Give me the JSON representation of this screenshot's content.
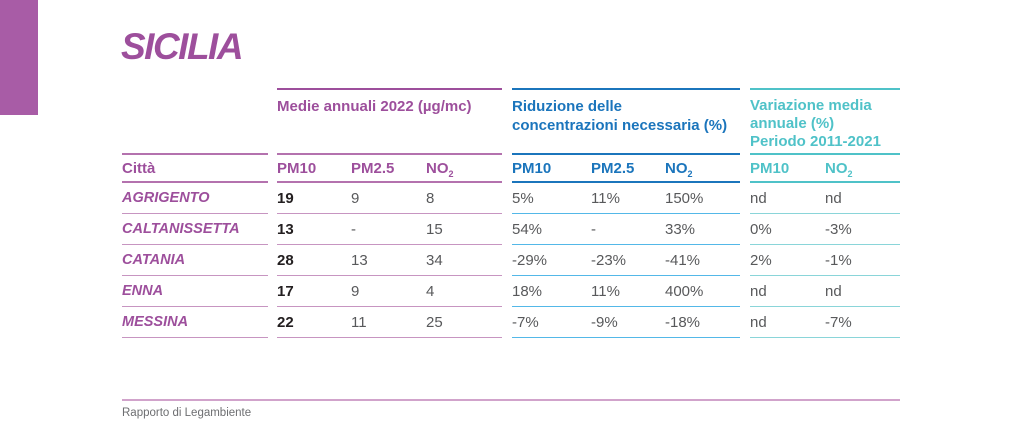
{
  "page": {
    "title": "SICILIA",
    "footer": "Rapporto di Legambiente"
  },
  "colors": {
    "magenta": "#9d4f9c",
    "magenta_block": "#a85ca6",
    "plum_line": "#b472ae",
    "plum_line_light": "#c795c1",
    "blue": "#1b75bc",
    "blue_line_light": "#54b8e8",
    "teal": "#4fc2c8",
    "teal_line_light": "#8ad5d9",
    "text_dark": "#231f20",
    "text_gray": "#58595b",
    "footer_gray": "#6d6e71",
    "footer_line": "#d1a3cb"
  },
  "table": {
    "city_header": "Città",
    "groups": [
      {
        "id": "medie",
        "title_lines": [
          "Medie annuali 2022 (µg/mc)",
          "",
          ""
        ],
        "columns": [
          {
            "label": "PM10",
            "sub": ""
          },
          {
            "label": "PM2.5",
            "sub": ""
          },
          {
            "label": "NO",
            "sub": "2"
          }
        ]
      },
      {
        "id": "riduzione",
        "title_lines": [
          "Riduzione delle",
          "concentrazioni necessaria (%)",
          ""
        ],
        "columns": [
          {
            "label": "PM10",
            "sub": ""
          },
          {
            "label": "PM2.5",
            "sub": ""
          },
          {
            "label": "NO",
            "sub": "2"
          }
        ]
      },
      {
        "id": "variazione",
        "title_lines": [
          "Variazione media",
          "annuale (%)",
          "Periodo 2011-2021"
        ],
        "columns": [
          {
            "label": "PM10",
            "sub": ""
          },
          {
            "label": "NO",
            "sub": "2"
          }
        ]
      }
    ],
    "rows": [
      {
        "city": "AGRIGENTO",
        "medie": [
          "19",
          "9",
          "8"
        ],
        "riduzione": [
          "5%",
          "11%",
          "150%"
        ],
        "variazione": [
          "nd",
          "nd"
        ]
      },
      {
        "city": "CALTANISSETTA",
        "medie": [
          "13",
          "-",
          "15"
        ],
        "riduzione": [
          "54%",
          "-",
          "33%"
        ],
        "variazione": [
          "0%",
          "-3%"
        ]
      },
      {
        "city": "CATANIA",
        "medie": [
          "28",
          "13",
          "34"
        ],
        "riduzione": [
          "-29%",
          "-23%",
          "-41%"
        ],
        "variazione": [
          "2%",
          "-1%"
        ]
      },
      {
        "city": "ENNA",
        "medie": [
          "17",
          "9",
          "4"
        ],
        "riduzione": [
          "18%",
          "11%",
          "400%"
        ],
        "variazione": [
          "nd",
          "nd"
        ]
      },
      {
        "city": "MESSINA",
        "medie": [
          "22",
          "11",
          "25"
        ],
        "riduzione": [
          "-7%",
          "-9%",
          "-18%"
        ],
        "variazione": [
          "nd",
          "-7%"
        ]
      }
    ]
  }
}
